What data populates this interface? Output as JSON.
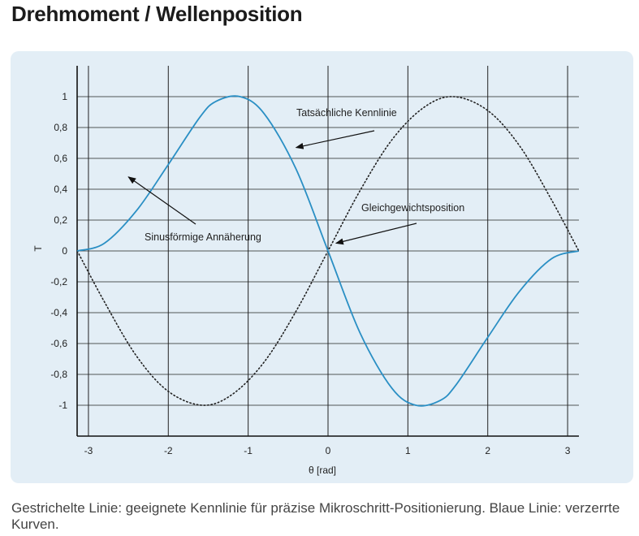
{
  "page": {
    "title": "Drehmoment / Wellenposition",
    "caption": "Gestrichelte Linie: geeignete Kennlinie für präzise Mikroschritt-Positionierung. Blaue Linie: verzerrte Kurven."
  },
  "chart_data": {
    "type": "line",
    "title": "",
    "xlabel": "θ [rad]",
    "ylabel": "T",
    "xlim": [
      -3.14159,
      3.14159
    ],
    "ylim": [
      -1.2,
      1.2
    ],
    "grid": true,
    "x_ticks": [
      -3,
      -2,
      -1,
      0,
      1,
      2,
      3
    ],
    "x_tick_labels": [
      "-3",
      "-2",
      "-1",
      "0",
      "1",
      "2",
      "3"
    ],
    "y_ticks": [
      1,
      0.8,
      0.6,
      0.4,
      0.2,
      0,
      -0.2,
      -0.4,
      -0.6,
      -0.8,
      -1
    ],
    "y_tick_labels": [
      "1",
      "0,8",
      "0,6",
      "0,4",
      "0,2",
      "0",
      "-0,2",
      "-0,4",
      "-0,6",
      "-0,8",
      "-1"
    ],
    "series": [
      {
        "style": "dotted",
        "color": "#222222",
        "x": [
          -3.14,
          -2.8,
          -2.4,
          -2.0,
          -1.571,
          -1.2,
          -0.8,
          -0.4,
          0.0,
          0.4,
          0.8,
          1.2,
          1.571,
          2.0,
          2.4,
          2.8,
          3.14
        ],
        "y": [
          0.0,
          -0.33,
          -0.68,
          -0.91,
          -1.0,
          -0.93,
          -0.72,
          -0.39,
          0.0,
          0.39,
          0.72,
          0.93,
          1.0,
          0.91,
          0.68,
          0.33,
          0.0
        ]
      },
      {
        "style": "solid",
        "color": "#2a8fc4",
        "x": [
          -3.14,
          -2.8,
          -2.4,
          -2.0,
          -1.6,
          -1.4,
          -1.1,
          -0.8,
          -0.4,
          0.0,
          0.4,
          0.8,
          1.1,
          1.4,
          1.6,
          2.0,
          2.4,
          2.8,
          3.14
        ],
        "y": [
          0.0,
          0.05,
          0.26,
          0.56,
          0.87,
          0.97,
          1.0,
          0.89,
          0.53,
          0.0,
          -0.53,
          -0.89,
          -1.0,
          -0.97,
          -0.87,
          -0.56,
          -0.26,
          -0.05,
          0.0
        ]
      }
    ],
    "annotations": [
      {
        "text": "Tatsächliche Kennlinie",
        "target": [
          -0.4,
          0.67
        ]
      },
      {
        "text": "Gleichgewichtsposition",
        "target": [
          0.1,
          0.05
        ]
      },
      {
        "text": "Sinusförmige Annäherung",
        "target": [
          -2.5,
          0.48
        ]
      }
    ]
  }
}
